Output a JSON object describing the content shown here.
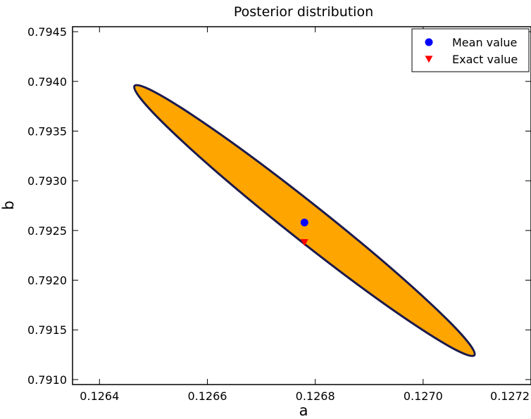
{
  "chart_data": {
    "type": "scatter",
    "title": "Posterior distribution",
    "xlabel": "a",
    "ylabel": "b",
    "xlim": [
      0.12635,
      0.1272
    ],
    "ylim": [
      0.79095,
      0.79455
    ],
    "xticks": [
      0.1264,
      0.1266,
      0.1268,
      0.127,
      0.1272
    ],
    "xtick_labels": [
      "0.1264",
      "0.1266",
      "0.1268",
      "0.1270",
      "0.1272"
    ],
    "yticks": [
      0.791,
      0.7915,
      0.792,
      0.7925,
      0.793,
      0.7935,
      0.794,
      0.7945
    ],
    "ytick_labels": [
      "0.7910",
      "0.7915",
      "0.7920",
      "0.7925",
      "0.7930",
      "0.7935",
      "0.7940",
      "0.7945"
    ],
    "grid": false,
    "legend_position": "top-right",
    "ellipse": {
      "center": [
        0.12678,
        0.7926
      ],
      "tip_upper_left": [
        0.12646,
        0.79396
      ],
      "tip_lower_right": [
        0.12709,
        0.79125
      ],
      "fill_color": "#ffa500",
      "edge_color": "#1a1a4e"
    },
    "series": [
      {
        "name": "Mean value",
        "marker": "circle",
        "color": "#0000ff",
        "x": [
          0.12678
        ],
        "y": [
          0.79258
        ]
      },
      {
        "name": "Exact value",
        "marker": "triangle-down",
        "color": "#ff0000",
        "x": [
          0.12678
        ],
        "y": [
          0.79238
        ]
      }
    ]
  }
}
